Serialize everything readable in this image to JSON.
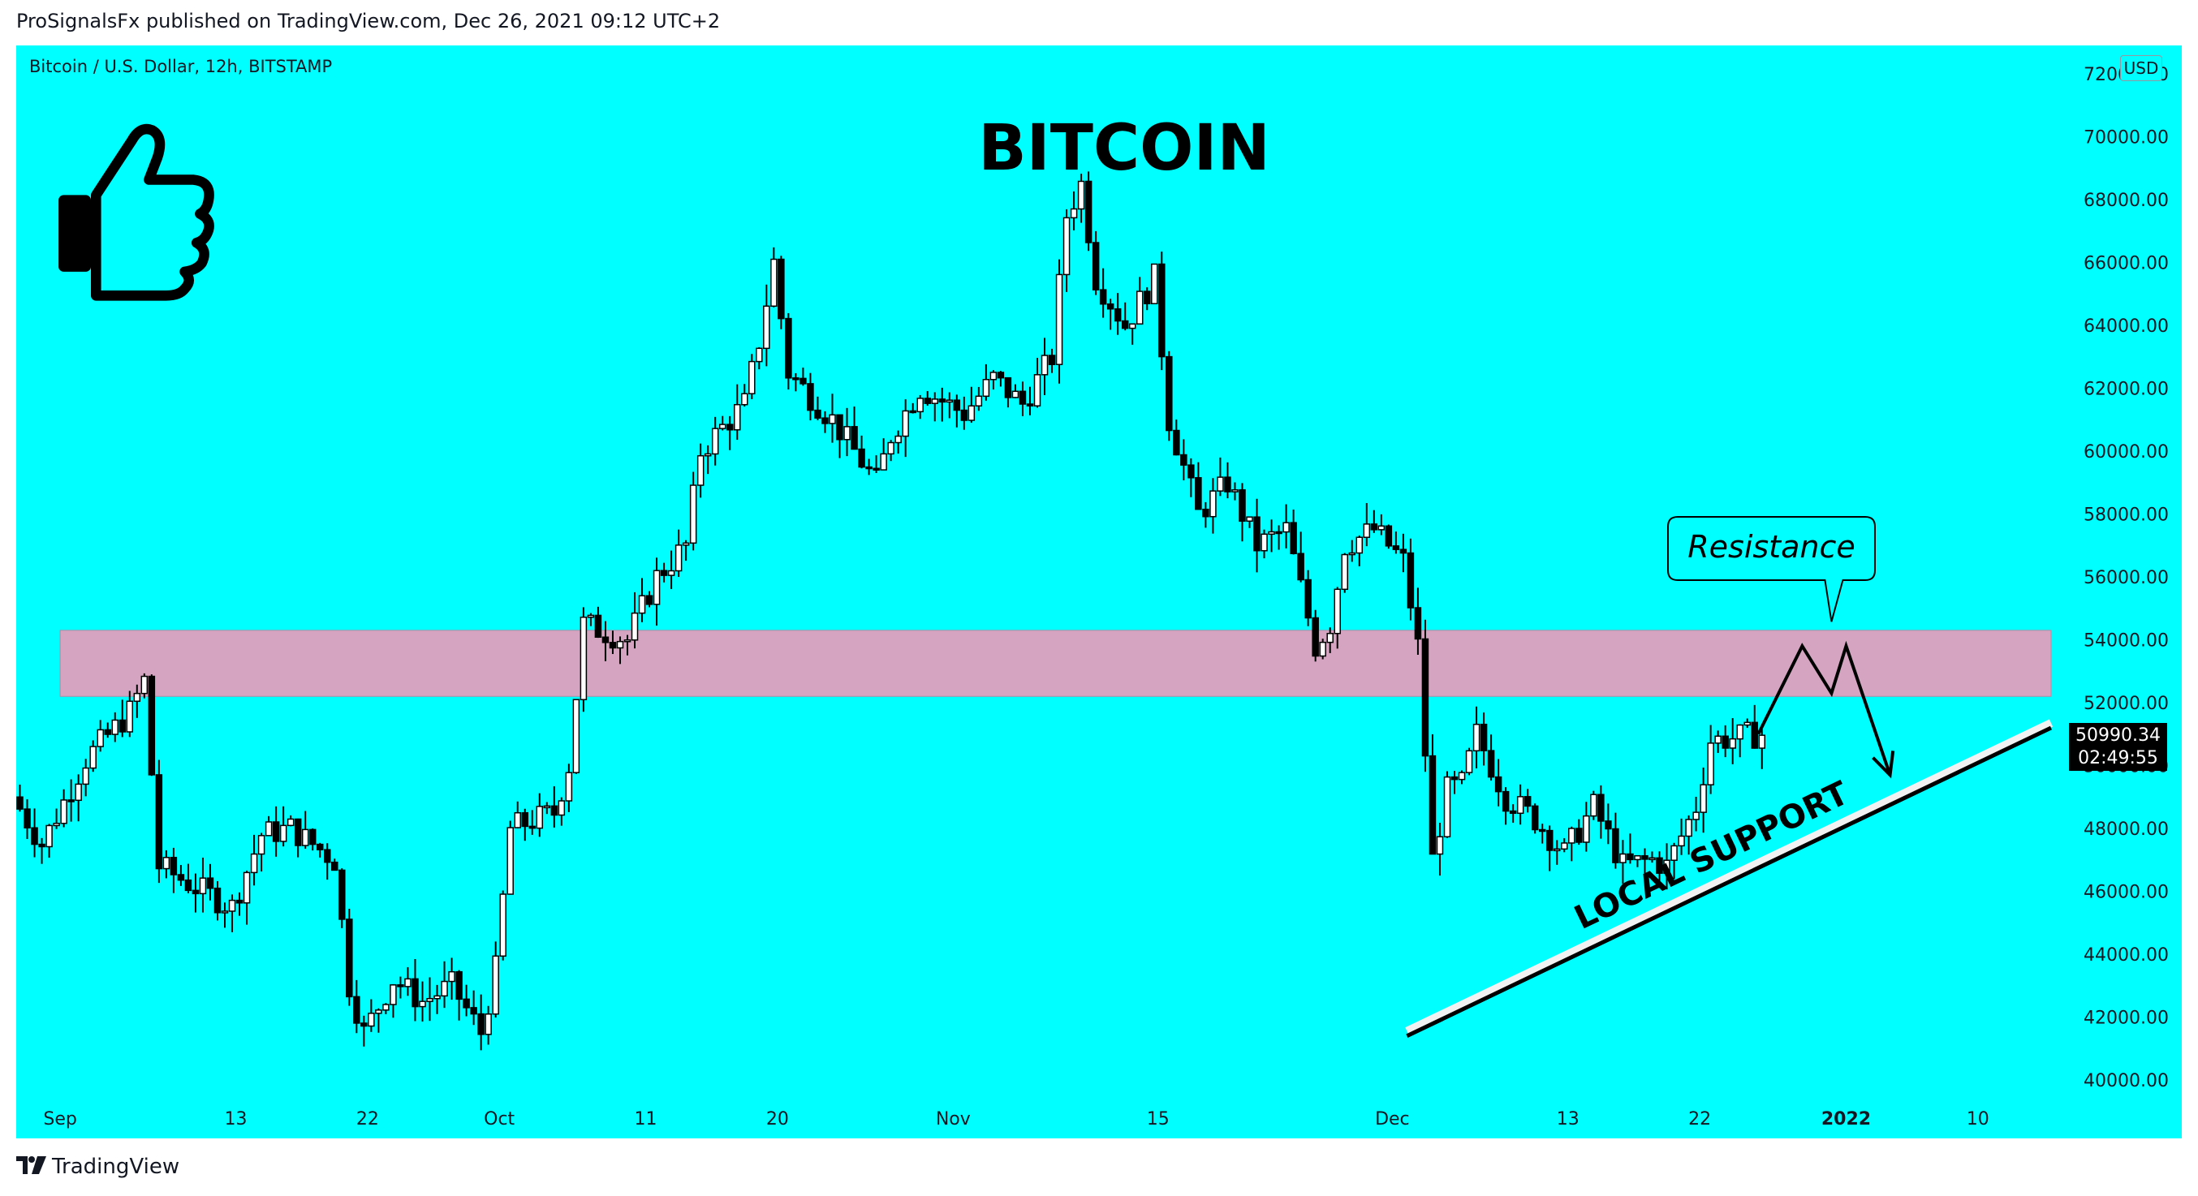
{
  "header": {
    "publish_line": "ProSignalsFx published on TradingView.com, Dec 26, 2021 09:12 UTC+2"
  },
  "chart_header": {
    "symbol_line": "Bitcoin / U.S. Dollar, 12h, BITSTAMP",
    "currency_badge": "USD"
  },
  "price_label": {
    "last_price": "50990.34",
    "countdown": "02:49:55"
  },
  "footer": {
    "brand": "TradingView",
    "logo_icon": "tradingview-logo-icon"
  },
  "colors": {
    "background": "#00ffff",
    "candle": "#000000",
    "zone_fill": "#d5a4c0",
    "support_line": "#000000",
    "support_shadow": "#f2f2f2"
  },
  "chart_data": {
    "type": "candlestick",
    "title": "BITCOIN",
    "symbol": "Bitcoin / U.S. Dollar, 12h, BITSTAMP",
    "currency": "USD",
    "interval": "12h",
    "ylim": [
      39500,
      72500
    ],
    "y_ticks": [
      "40000.00",
      "42000.00",
      "44000.00",
      "46000.00",
      "48000.00",
      "50000.00",
      "52000.00",
      "54000.00",
      "56000.00",
      "58000.00",
      "60000.00",
      "62000.00",
      "64000.00",
      "66000.00",
      "68000.00",
      "70000.00",
      "72000.00"
    ],
    "x_ticks": [
      {
        "date": "2021-09-01",
        "label": "Sep",
        "bold": false
      },
      {
        "date": "2021-09-13",
        "label": "13",
        "bold": false
      },
      {
        "date": "2021-09-22",
        "label": "22",
        "bold": false
      },
      {
        "date": "2021-10-01",
        "label": "Oct",
        "bold": false
      },
      {
        "date": "2021-10-11",
        "label": "11",
        "bold": false
      },
      {
        "date": "2021-10-20",
        "label": "20",
        "bold": false
      },
      {
        "date": "2021-11-01",
        "label": "Nov",
        "bold": false
      },
      {
        "date": "2021-11-15",
        "label": "15",
        "bold": false
      },
      {
        "date": "2021-12-01",
        "label": "Dec",
        "bold": false
      },
      {
        "date": "2021-12-13",
        "label": "13",
        "bold": false
      },
      {
        "date": "2021-12-22",
        "label": "22",
        "bold": false
      },
      {
        "date": "2022-01-01",
        "label": "2022",
        "bold": true
      },
      {
        "date": "2022-01-10",
        "label": "10",
        "bold": false
      }
    ],
    "x_range": [
      "2021-08-29",
      "2022-01-16"
    ],
    "price_path": [
      [
        "2021-08-29",
        49000
      ],
      [
        "2021-08-31",
        47500
      ],
      [
        "2021-09-03",
        50200
      ],
      [
        "2021-09-06",
        51700
      ],
      [
        "2021-09-07",
        52700
      ],
      [
        "2021-09-08",
        46800
      ],
      [
        "2021-09-11",
        46000
      ],
      [
        "2021-09-13",
        45500
      ],
      [
        "2021-09-15",
        47800
      ],
      [
        "2021-09-17",
        48000
      ],
      [
        "2021-09-20",
        47000
      ],
      [
        "2021-09-21",
        43000
      ],
      [
        "2021-09-22",
        41500
      ],
      [
        "2021-09-24",
        43200
      ],
      [
        "2021-09-26",
        42500
      ],
      [
        "2021-09-28",
        43000
      ],
      [
        "2021-09-30",
        41500
      ],
      [
        "2021-10-01",
        43500
      ],
      [
        "2021-10-02",
        48000
      ],
      [
        "2021-10-05",
        48500
      ],
      [
        "2021-10-06",
        50000
      ],
      [
        "2021-10-07",
        54500
      ],
      [
        "2021-10-10",
        54000
      ],
      [
        "2021-10-12",
        56000
      ],
      [
        "2021-10-14",
        57000
      ],
      [
        "2021-10-15",
        60000
      ],
      [
        "2021-10-18",
        61500
      ],
      [
        "2021-10-19",
        63500
      ],
      [
        "2021-10-20",
        66000
      ],
      [
        "2021-10-21",
        62500
      ],
      [
        "2021-10-24",
        61000
      ],
      [
        "2021-10-27",
        59000
      ],
      [
        "2021-10-28",
        60500
      ],
      [
        "2021-10-30",
        62000
      ],
      [
        "2021-11-02",
        61200
      ],
      [
        "2021-11-04",
        62300
      ],
      [
        "2021-11-06",
        61500
      ],
      [
        "2021-11-08",
        63000
      ],
      [
        "2021-11-09",
        67500
      ],
      [
        "2021-11-10",
        68500
      ],
      [
        "2021-11-11",
        65500
      ],
      [
        "2021-11-13",
        64000
      ],
      [
        "2021-11-15",
        65500
      ],
      [
        "2021-11-16",
        61000
      ],
      [
        "2021-11-18",
        58000
      ],
      [
        "2021-11-20",
        59000
      ],
      [
        "2021-11-22",
        57000
      ],
      [
        "2021-11-24",
        57500
      ],
      [
        "2021-11-26",
        53800
      ],
      [
        "2021-11-27",
        54500
      ],
      [
        "2021-11-28",
        57000
      ],
      [
        "2021-11-30",
        57500
      ],
      [
        "2021-12-02",
        56500
      ],
      [
        "2021-12-03",
        53800
      ],
      [
        "2021-12-04",
        47000
      ],
      [
        "2021-12-05",
        49200
      ],
      [
        "2021-12-06",
        49400
      ],
      [
        "2021-12-07",
        51000
      ],
      [
        "2021-12-09",
        49000
      ],
      [
        "2021-12-11",
        48300
      ],
      [
        "2021-12-13",
        47200
      ],
      [
        "2021-12-15",
        48700
      ],
      [
        "2021-12-17",
        46800
      ],
      [
        "2021-12-19",
        47000
      ],
      [
        "2021-12-20",
        46800
      ],
      [
        "2021-12-22",
        48700
      ],
      [
        "2021-12-23",
        50800
      ],
      [
        "2021-12-25",
        50900
      ],
      [
        "2021-12-26",
        50990
      ]
    ],
    "sample_interval_days": 0.5,
    "resistance_zone": {
      "from": "2021-09-01",
      "to": "2022-01-15",
      "low": 52200,
      "high": 54300
    },
    "support_line": {
      "start": [
        "2021-12-02",
        41400
      ],
      "end": [
        "2022-01-15",
        51200
      ],
      "label": "LOCAL SUPPORT"
    },
    "projection": [
      [
        "2021-12-26",
        51000
      ],
      [
        "2021-12-29",
        53800
      ],
      [
        "2021-12-31",
        52300
      ],
      [
        "2022-01-01",
        53800
      ],
      [
        "2022-01-04",
        49700
      ]
    ],
    "annotation": {
      "text": "Resistance",
      "pointer": [
        "2021-12-31",
        53800
      ]
    },
    "last_price": 50990.34,
    "countdown": "02:49:55"
  }
}
